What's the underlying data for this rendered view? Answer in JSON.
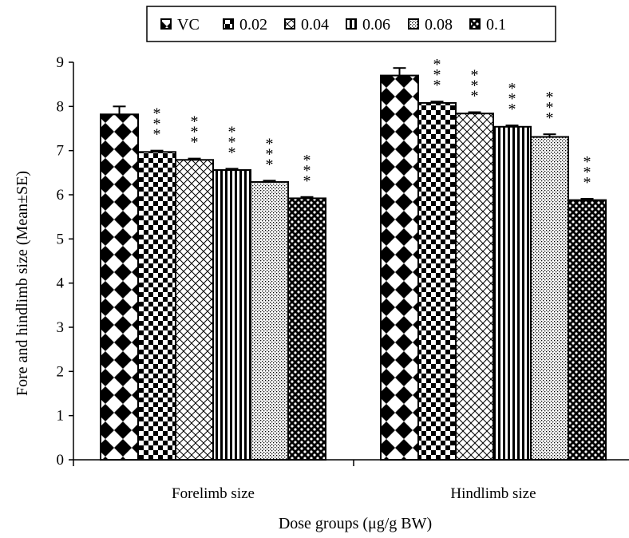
{
  "chart_data": {
    "type": "bar",
    "title": "",
    "xlabel": "Dose groups (μg/g BW)",
    "ylabel": "Fore and hindlimb size (Mean±SE)",
    "ylim": [
      0,
      9
    ],
    "yticks": [
      "0",
      "1",
      "2",
      "3",
      "4",
      "5",
      "6",
      "7",
      "8",
      "9"
    ],
    "categories": [
      "Forelimb size",
      "Hindlimb size"
    ],
    "legend_position": "top",
    "grid": false,
    "series": [
      {
        "name": "VC",
        "pattern": "diamond-check",
        "values": [
          7.82,
          8.7
        ],
        "errors": [
          0.18,
          0.17
        ],
        "significance": [
          "",
          ""
        ]
      },
      {
        "name": "0.02",
        "pattern": "checkerboard",
        "values": [
          6.97,
          8.08
        ],
        "errors": [
          0.03,
          0.03
        ],
        "significance": [
          "***",
          "***"
        ]
      },
      {
        "name": "0.04",
        "pattern": "crosshatch",
        "values": [
          6.79,
          7.84
        ],
        "errors": [
          0.03,
          0.03
        ],
        "significance": [
          "***",
          "***"
        ]
      },
      {
        "name": "0.06",
        "pattern": "vertical-lines",
        "values": [
          6.56,
          7.54
        ],
        "errors": [
          0.03,
          0.03
        ],
        "significance": [
          "***",
          "***"
        ]
      },
      {
        "name": "0.08",
        "pattern": "dots",
        "values": [
          6.29,
          7.31
        ],
        "errors": [
          0.03,
          0.06
        ],
        "significance": [
          "***",
          "***"
        ]
      },
      {
        "name": "0.1",
        "pattern": "dark-dots",
        "values": [
          5.92,
          5.88
        ],
        "errors": [
          0.03,
          0.03
        ],
        "significance": [
          "***",
          "***"
        ]
      }
    ]
  }
}
